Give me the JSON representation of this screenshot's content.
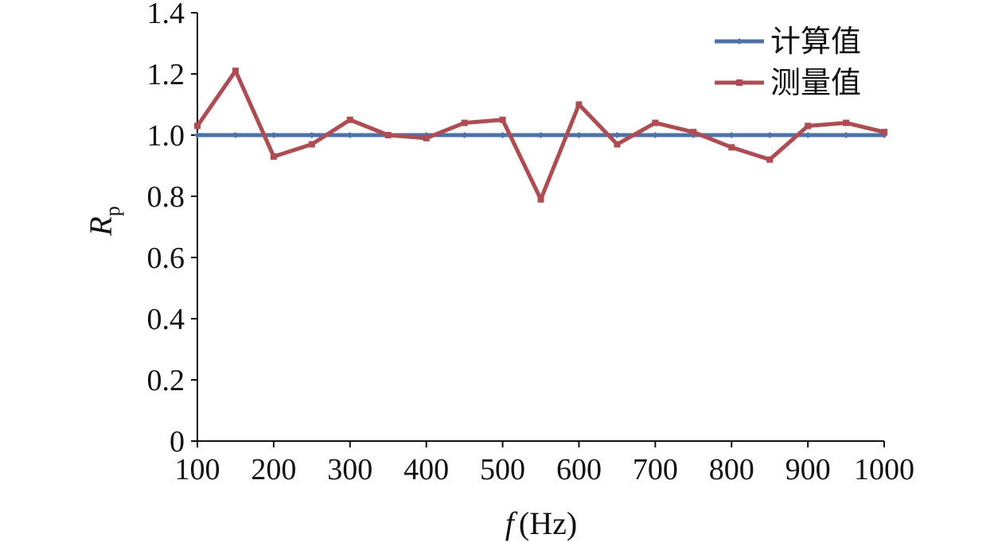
{
  "chart_data": {
    "type": "line",
    "xlabel": "f (Hz)",
    "ylabel": "Rp",
    "xlabel_parts": {
      "var": "f",
      "unit": "(Hz)"
    },
    "ylabel_parts": {
      "base": "R",
      "sub": "p"
    },
    "xlim": [
      100,
      1000
    ],
    "ylim": [
      0,
      1.4
    ],
    "x_ticks": [
      "100",
      "200",
      "300",
      "400",
      "500",
      "600",
      "700",
      "800",
      "900",
      "1000"
    ],
    "y_ticks": [
      "0",
      "0.2",
      "0.4",
      "0.6",
      "0.8",
      "1.0",
      "1.2",
      "1.4"
    ],
    "grid": false,
    "legend_position": "top-right",
    "x": [
      100,
      150,
      200,
      250,
      300,
      350,
      400,
      450,
      500,
      550,
      600,
      650,
      700,
      750,
      800,
      850,
      900,
      950,
      1000
    ],
    "series": [
      {
        "name": "计算值",
        "color": "#4a73ad",
        "marker": "diamond",
        "values": [
          1.0,
          1.0,
          1.0,
          1.0,
          1.0,
          1.0,
          1.0,
          1.0,
          1.0,
          1.0,
          1.0,
          1.0,
          1.0,
          1.0,
          1.0,
          1.0,
          1.0,
          1.0,
          1.0
        ]
      },
      {
        "name": "测量值",
        "color": "#b24a4f",
        "marker": "square",
        "values": [
          1.03,
          1.21,
          0.93,
          0.97,
          1.05,
          1.0,
          0.99,
          1.04,
          1.05,
          0.79,
          1.1,
          0.97,
          1.04,
          1.01,
          0.96,
          0.92,
          1.03,
          1.04,
          1.01
        ]
      }
    ]
  }
}
